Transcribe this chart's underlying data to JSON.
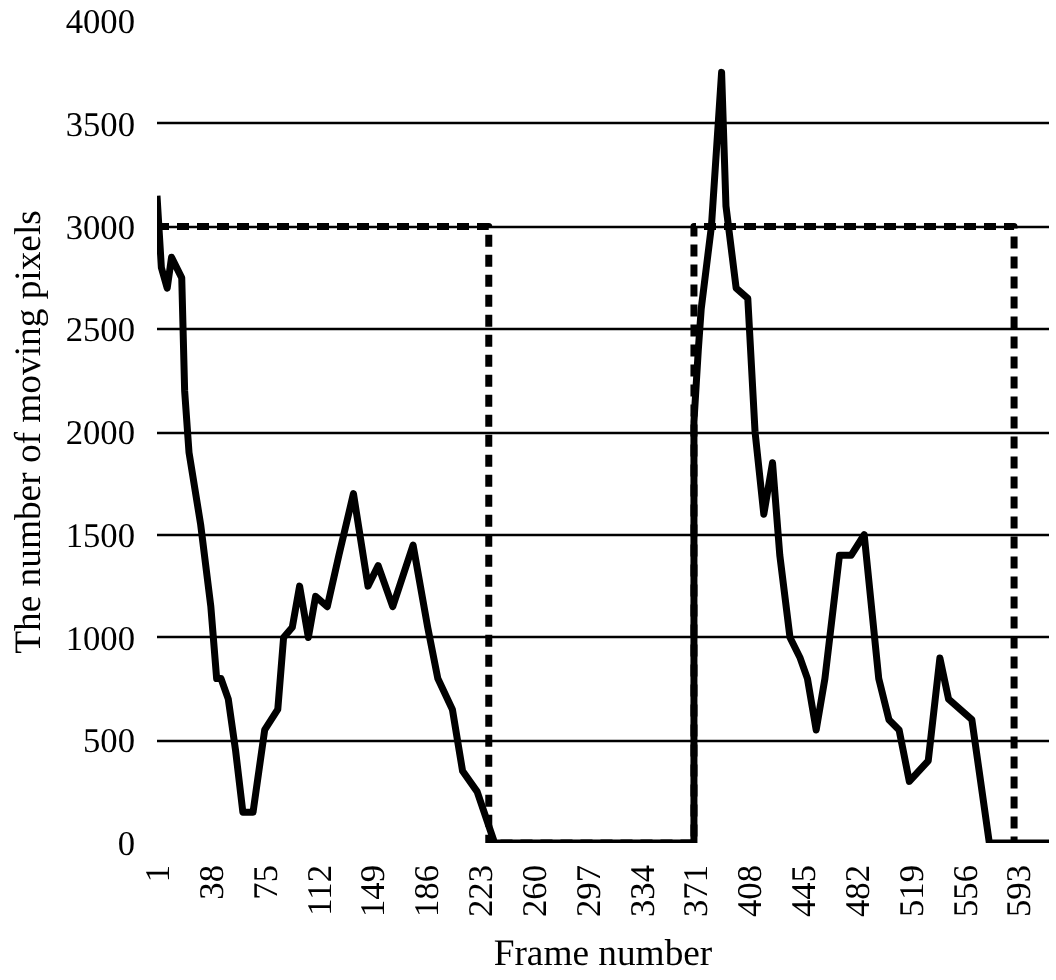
{
  "chart_data": {
    "type": "line",
    "xlabel": "Frame number",
    "ylabel": "The number of moving pixels",
    "xlim": [
      1,
      614
    ],
    "xticks": [
      1,
      38,
      75,
      112,
      149,
      186,
      223,
      260,
      297,
      334,
      371,
      408,
      445,
      482,
      519,
      556,
      593
    ],
    "ylim": [
      0,
      4000
    ],
    "yticks": [
      0,
      500,
      1000,
      1500,
      2000,
      2500,
      3000,
      3500,
      4000
    ],
    "grid": "y",
    "marker": "none",
    "series": [
      {
        "color": "#000000",
        "line_style": "solid",
        "x": [
          1,
          4,
          8,
          11,
          18,
          20,
          23,
          31,
          38,
          42,
          45,
          50,
          55,
          60,
          67,
          75,
          84,
          88,
          94,
          99,
          105,
          110,
          118,
          126,
          136,
          146,
          153,
          163,
          170,
          177,
          187,
          194,
          204,
          211,
          221,
          233,
          370,
          370,
          373,
          375,
          382,
          389,
          392,
          399,
          407,
          412,
          418,
          424,
          429,
          436,
          443,
          448,
          454,
          460,
          470,
          478,
          487,
          497,
          504,
          511,
          518,
          531,
          539,
          545,
          561,
          573,
          614
        ],
        "values": [
          3150,
          2800,
          2700,
          2850,
          2750,
          2200,
          1900,
          1550,
          1150,
          800,
          800,
          700,
          450,
          150,
          150,
          550,
          650,
          1000,
          1050,
          1250,
          1000,
          1200,
          1150,
          1400,
          1700,
          1250,
          1350,
          1150,
          1300,
          1450,
          1050,
          800,
          650,
          350,
          250,
          0,
          0,
          2050,
          2400,
          2600,
          3000,
          3750,
          3100,
          2700,
          2650,
          2000,
          1600,
          1850,
          1400,
          1000,
          900,
          800,
          550,
          800,
          1400,
          1400,
          1500,
          800,
          600,
          550,
          300,
          400,
          900,
          700,
          600,
          0,
          0
        ]
      },
      {
        "color": "#000000",
        "line_style": "dashed",
        "x": [
          1,
          229,
          229,
          370,
          370,
          590,
          590
        ],
        "values": [
          3000,
          3000,
          0,
          0,
          3000,
          3000,
          0
        ]
      }
    ]
  }
}
